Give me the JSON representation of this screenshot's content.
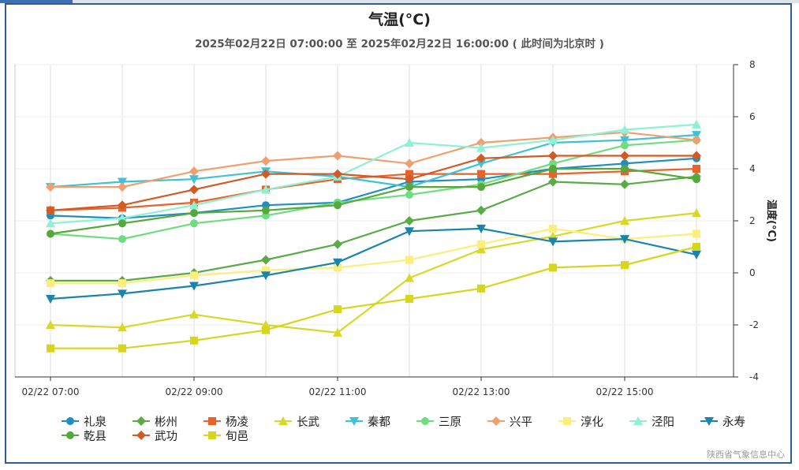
{
  "chart_data": {
    "type": "line",
    "title": "气温(°C)",
    "subtitle": "2025年02月22日 07:00:00 至 2025年02月22日 16:00:00 ( 此时间为北京时 )",
    "ylabel": "温度(°C)",
    "ylim": [
      -4,
      8
    ],
    "yticks": [
      "-4",
      "-2",
      "0",
      "2",
      "4",
      "6",
      "8"
    ],
    "y_axis_side": "right",
    "x": [
      "07:00",
      "08:00",
      "09:00",
      "10:00",
      "11:00",
      "12:00",
      "13:00",
      "14:00",
      "15:00",
      "16:00"
    ],
    "xtick_labels": [
      "02/22 07:00",
      "02/22 09:00",
      "02/22 11:00",
      "02/22 13:00",
      "02/22 15:00"
    ],
    "grid": true,
    "legend_position": "bottom",
    "series": [
      {
        "name": "礼泉",
        "color": "#1f8fc0",
        "marker": "circle",
        "values": [
          2.2,
          2.1,
          2.3,
          2.6,
          2.7,
          3.5,
          3.6,
          4.0,
          4.2,
          4.4
        ]
      },
      {
        "name": "彬州",
        "color": "#5aab47",
        "marker": "diamond",
        "values": [
          -0.3,
          -0.3,
          0.0,
          0.5,
          1.1,
          2.0,
          2.4,
          3.5,
          3.4,
          3.7
        ]
      },
      {
        "name": "杨凌",
        "color": "#e8622a",
        "marker": "square",
        "values": [
          2.4,
          2.5,
          2.7,
          3.2,
          3.6,
          3.8,
          3.8,
          3.8,
          3.9,
          4.0
        ]
      },
      {
        "name": "长武",
        "color": "#d8d82a",
        "marker": "triangle",
        "values": [
          -2.0,
          -2.1,
          -1.6,
          -2.0,
          -2.3,
          -0.2,
          0.9,
          1.4,
          2.0,
          2.3
        ]
      },
      {
        "name": "秦都",
        "color": "#3fc1d6",
        "marker": "triangle-down",
        "values": [
          3.3,
          3.5,
          3.6,
          3.9,
          3.7,
          3.3,
          4.2,
          5.0,
          5.1,
          5.3
        ]
      },
      {
        "name": "三原",
        "color": "#6fdd7f",
        "marker": "circle",
        "values": [
          1.5,
          1.3,
          1.9,
          2.2,
          2.7,
          3.0,
          3.4,
          4.2,
          4.9,
          5.1
        ]
      },
      {
        "name": "兴平",
        "color": "#f0a070",
        "marker": "diamond",
        "values": [
          3.3,
          3.3,
          3.9,
          4.3,
          4.5,
          4.2,
          5.0,
          5.2,
          5.4,
          5.1
        ]
      },
      {
        "name": "淳化",
        "color": "#fbee7a",
        "marker": "square",
        "values": [
          -0.4,
          -0.4,
          -0.1,
          0.1,
          0.2,
          0.5,
          1.1,
          1.7,
          1.3,
          1.5
        ]
      },
      {
        "name": "泾阳",
        "color": "#8ff0d4",
        "marker": "triangle",
        "values": [
          1.9,
          2.1,
          2.6,
          3.2,
          3.7,
          5.0,
          4.8,
          5.1,
          5.5,
          5.7
        ]
      },
      {
        "name": "永寿",
        "color": "#1a85aa",
        "marker": "triangle-down",
        "values": [
          -1.0,
          -0.8,
          -0.5,
          -0.1,
          0.4,
          1.6,
          1.7,
          1.2,
          1.3,
          0.7
        ]
      },
      {
        "name": "乾县",
        "color": "#57a83c",
        "marker": "circle",
        "values": [
          1.5,
          1.9,
          2.3,
          2.4,
          2.6,
          3.3,
          3.3,
          4.0,
          4.0,
          3.6
        ]
      },
      {
        "name": "武功",
        "color": "#d25a25",
        "marker": "diamond",
        "values": [
          2.4,
          2.6,
          3.2,
          3.8,
          3.8,
          3.6,
          4.4,
          4.5,
          4.5,
          4.5
        ]
      },
      {
        "name": "旬邑",
        "color": "#d6d61f",
        "marker": "square",
        "values": [
          -2.9,
          -2.9,
          -2.6,
          -2.2,
          -1.4,
          -1.0,
          -0.6,
          0.2,
          0.3,
          1.0
        ]
      }
    ]
  },
  "credit": "陕西省气象信息中心"
}
